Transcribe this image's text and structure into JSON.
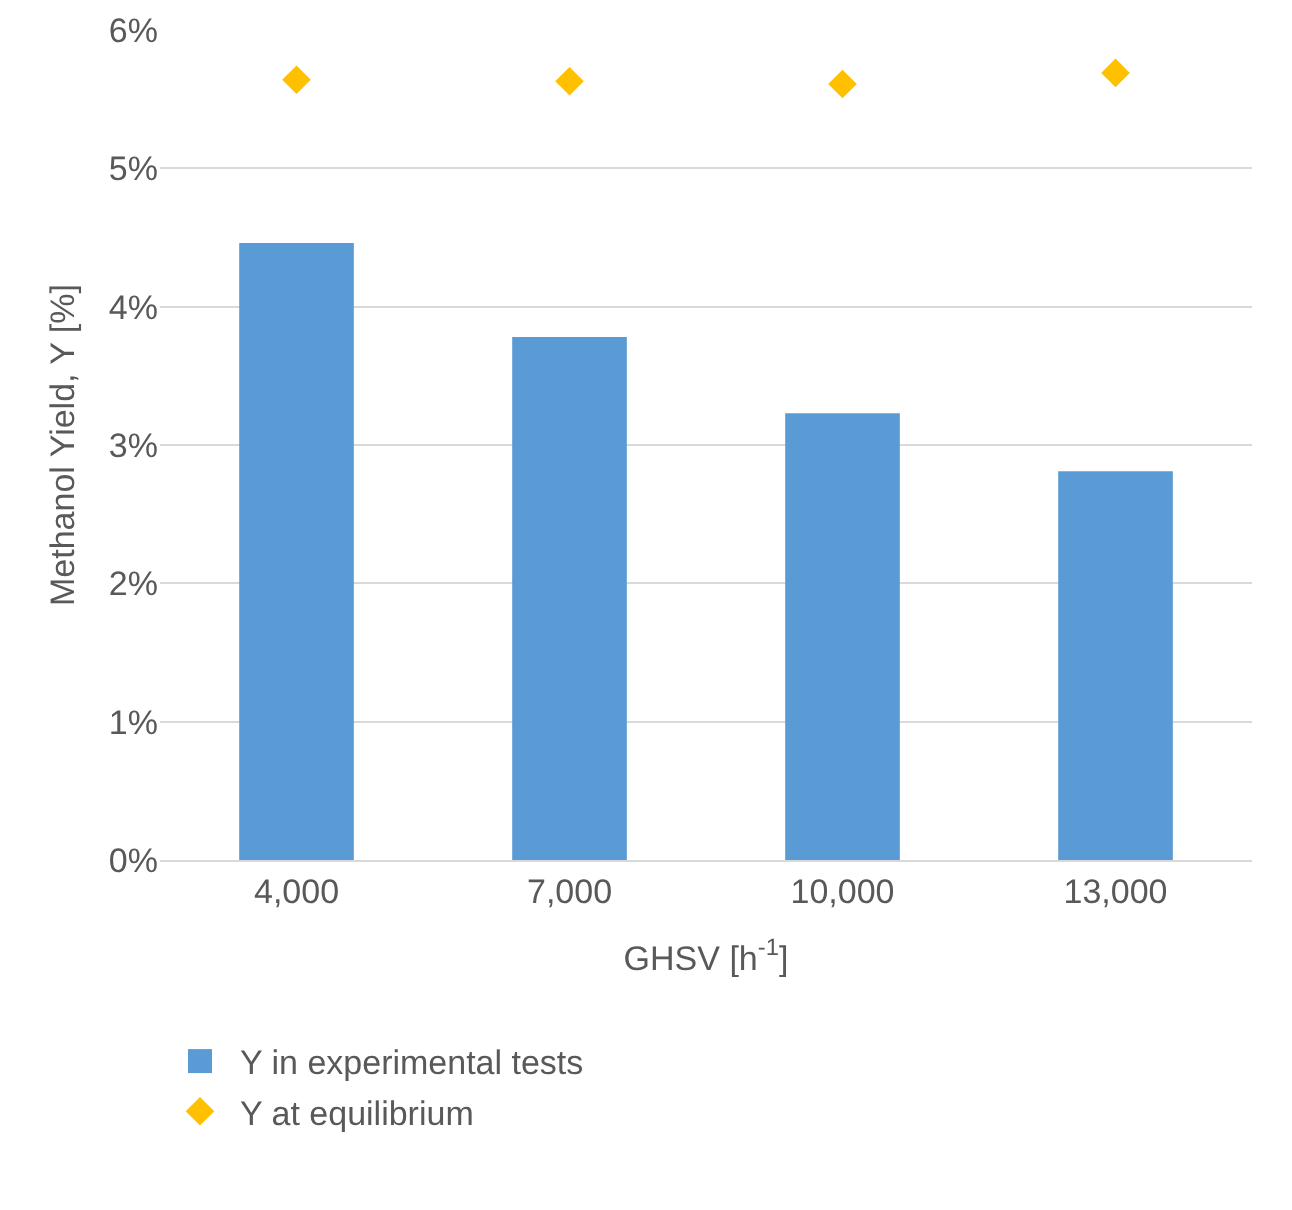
{
  "chart_data": {
    "type": "bar",
    "xlabel": "GHSV [h$^{-1}$]",
    "ylabel": "Methanol Yield, Y [%]",
    "categories": [
      "4,000",
      "7,000",
      "10,000",
      "13,000"
    ],
    "series": [
      {
        "name": "Y in experimental tests",
        "color": "#5b9bd5",
        "values": [
          4.46,
          3.78,
          3.23,
          2.81
        ]
      },
      {
        "name": "Y at equilibrium",
        "type": "scatter",
        "marker": "diamond",
        "color": "#ffc000",
        "x": [
          "4,000",
          "7,000",
          "10,000",
          "13,000"
        ],
        "values": [
          5.64,
          5.63,
          5.61,
          5.69
        ]
      }
    ],
    "ylim": [
      0,
      6
    ],
    "yticks": [
      {
        "value": 0,
        "label": "0%"
      },
      {
        "value": 1,
        "label": "1%"
      },
      {
        "value": 2,
        "label": "2%"
      },
      {
        "value": 3,
        "label": "3%"
      },
      {
        "value": 4,
        "label": "4%"
      },
      {
        "value": 5,
        "label": "5%"
      },
      {
        "value": 6,
        "label": "6%"
      }
    ],
    "grid": "y",
    "legend": "bottom"
  }
}
